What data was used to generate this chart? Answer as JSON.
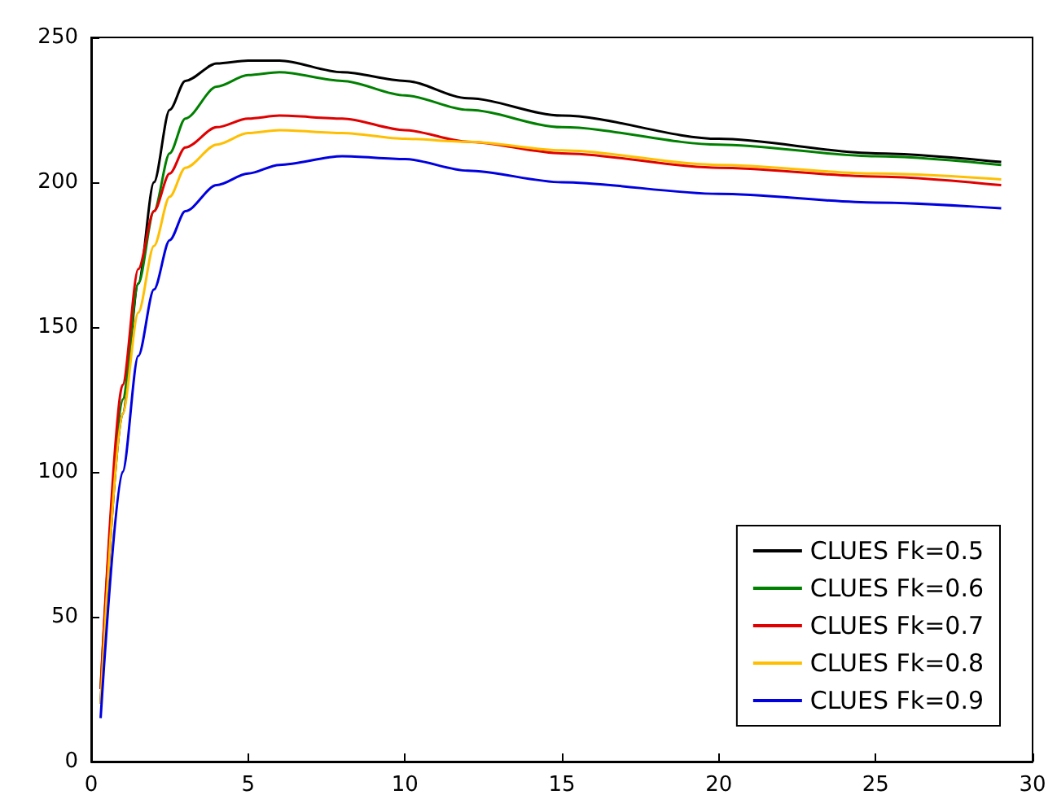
{
  "chart_data": {
    "type": "line",
    "x": [
      0.3,
      1,
      1.5,
      2,
      2.5,
      3,
      4,
      5,
      6,
      8,
      10,
      12,
      15,
      20,
      25,
      29
    ],
    "series": [
      {
        "name": "CLUES Fk=0.5",
        "color": "#000000",
        "values": [
          20,
          120,
          165,
          200,
          225,
          235,
          241,
          242,
          242,
          238,
          235,
          229,
          223,
          215,
          210,
          207
        ]
      },
      {
        "name": "CLUES Fk=0.6",
        "color": "#008000",
        "values": [
          25,
          125,
          165,
          190,
          210,
          222,
          233,
          237,
          238,
          235,
          230,
          225,
          219,
          213,
          209,
          206
        ]
      },
      {
        "name": "CLUES Fk=0.7",
        "color": "#e00000",
        "values": [
          25,
          130,
          170,
          190,
          203,
          212,
          219,
          222,
          223,
          222,
          218,
          214,
          210,
          205,
          202,
          199
        ]
      },
      {
        "name": "CLUES Fk=0.8",
        "color": "#ffbf00",
        "values": [
          20,
          120,
          155,
          178,
          195,
          205,
          213,
          217,
          218,
          217,
          215,
          214,
          211,
          206,
          203,
          201
        ]
      },
      {
        "name": "CLUES Fk=0.9",
        "color": "#0000e0",
        "values": [
          15,
          100,
          140,
          163,
          180,
          190,
          199,
          203,
          206,
          209,
          208,
          204,
          200,
          196,
          193,
          191
        ]
      }
    ],
    "xlim": [
      0,
      30
    ],
    "xticks": [
      0,
      5,
      10,
      15,
      20,
      25,
      30
    ],
    "ylim": [
      0,
      250
    ],
    "yticks": [
      0,
      50,
      100,
      150,
      200,
      250
    ],
    "legend": "bottom right",
    "grid": false
  }
}
